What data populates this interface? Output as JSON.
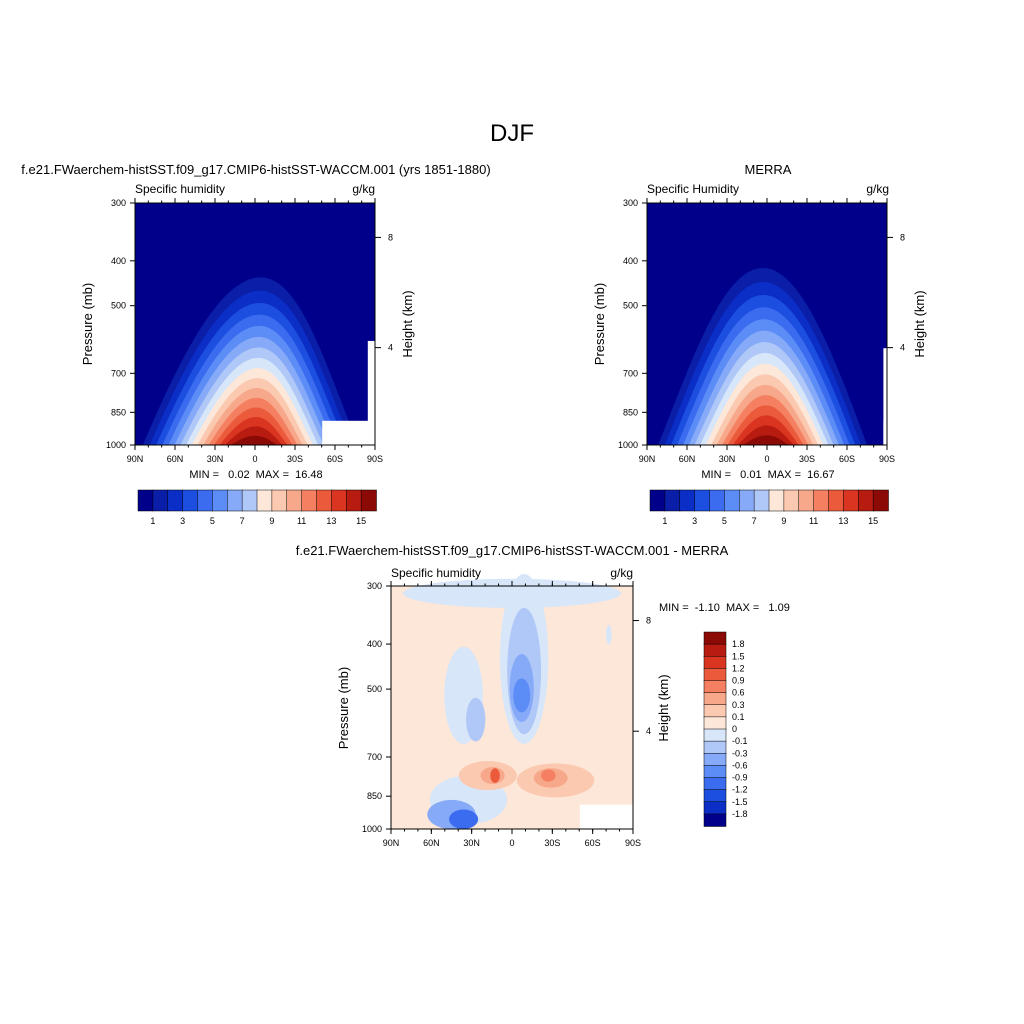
{
  "figure": {
    "title": "DJF"
  },
  "colors": {
    "positive_ramp": [
      "#00008b",
      "#0a1ea8",
      "#0b2ec7",
      "#1c4fe0",
      "#3b6cf0",
      "#5c8cf6",
      "#86aaf8",
      "#b0c8f7",
      "#d8e6f9",
      "#fde7d8",
      "#fbc9b0",
      "#f8a88a",
      "#f47f61",
      "#ea5a3b",
      "#d93520",
      "#b81c10",
      "#8c0a06"
    ],
    "diff_ramp": [
      "#00008b",
      "#0b2ec7",
      "#1c4fe0",
      "#3b6cf0",
      "#5c8cf6",
      "#86aaf8",
      "#b0c8f7",
      "#d8e6f9",
      "#fde7d8",
      "#fbc9b0",
      "#f8a88a",
      "#f47f61",
      "#ea5a3b",
      "#d93520",
      "#b81c10",
      "#8c0a06"
    ]
  },
  "chart_data": [
    {
      "type": "heatmap",
      "title": "f.e21.FWaerchem-histSST.f09_g17.CMIP6-histSST-WACCM.001 (yrs 1851-1880)",
      "left_label": "Specific humidity",
      "right_label": "g/kg",
      "ylabel": "Pressure (mb)",
      "ylabel_right": "Height (km)",
      "x_ticks": [
        "90N",
        "60N",
        "30N",
        "0",
        "30S",
        "60S",
        "90S"
      ],
      "y_ticks": [
        "300",
        "400",
        "500",
        "700",
        "850",
        "1000"
      ],
      "y_right_ticks": [
        "8",
        "4"
      ],
      "stats": "MIN =   0.02  MAX =  16.48",
      "colorbar_labels": [
        "1",
        "3",
        "5",
        "7",
        "9",
        "11",
        "13",
        "15"
      ],
      "field": {
        "peak": 16.48,
        "peak_lat": 0,
        "min": 0.02,
        "lat_width_surface": 36,
        "top_pressure_of_moisture": 400
      }
    },
    {
      "type": "heatmap",
      "title": "MERRA",
      "left_label": "Specific Humidity",
      "right_label": "g/kg",
      "ylabel": "Pressure (mb)",
      "ylabel_right": "Height (km)",
      "x_ticks": [
        "90N",
        "60N",
        "30N",
        "0",
        "30S",
        "60S",
        "90S"
      ],
      "y_ticks": [
        "300",
        "400",
        "500",
        "700",
        "850",
        "1000"
      ],
      "y_right_ticks": [
        "8",
        "4"
      ],
      "stats": "MIN =   0.01  MAX =  16.67",
      "colorbar_labels": [
        "1",
        "3",
        "5",
        "7",
        "9",
        "11",
        "13",
        "15"
      ],
      "field": {
        "peak": 16.67,
        "peak_lat": 0,
        "min": 0.01,
        "lat_width_surface": 34,
        "top_pressure_of_moisture": 380
      }
    },
    {
      "type": "heatmap",
      "title": "f.e21.FWaerchem-histSST.f09_g17.CMIP6-histSST-WACCM.001 - MERRA",
      "left_label": "Specific humidity",
      "right_label": "g/kg",
      "ylabel": "Pressure (mb)",
      "ylabel_right": "Height (km)",
      "x_ticks": [
        "90N",
        "60N",
        "30N",
        "0",
        "30S",
        "60S",
        "90S"
      ],
      "y_ticks": [
        "300",
        "400",
        "500",
        "700",
        "850",
        "1000"
      ],
      "y_right_ticks": [
        "8",
        "4"
      ],
      "stats": "MIN =  -1.10  MAX =   1.09",
      "colorbar_labels": [
        "1.8",
        "1.5",
        "1.2",
        "0.9",
        "0.6",
        "0.3",
        "0.1",
        "0",
        "-0.1",
        "-0.3",
        "-0.6",
        "-0.9",
        "-1.2",
        "-1.5",
        "-1.8"
      ],
      "field": {
        "min": -1.1,
        "max": 1.09
      }
    }
  ]
}
